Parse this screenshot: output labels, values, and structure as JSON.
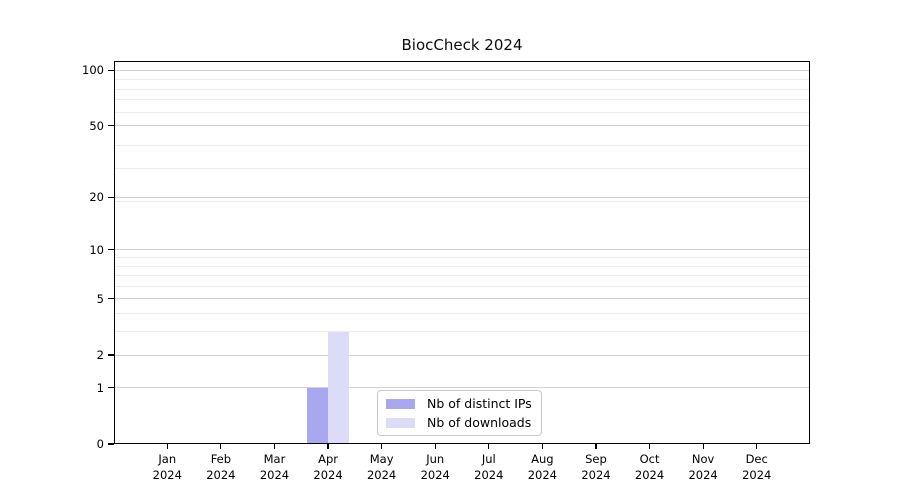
{
  "chart_data": {
    "type": "bar",
    "title": "BiocCheck 2024",
    "categories": [
      "Jan",
      "Feb",
      "Mar",
      "Apr",
      "May",
      "Jun",
      "Jul",
      "Aug",
      "Sep",
      "Oct",
      "Nov",
      "Dec"
    ],
    "year_label": "2024",
    "series": [
      {
        "name": "Nb of distinct IPs",
        "color": "#a8a8f0",
        "values": [
          0,
          0,
          0,
          1,
          0,
          0,
          0,
          0,
          0,
          0,
          0,
          0
        ]
      },
      {
        "name": "Nb of downloads",
        "color": "#dcdcf8",
        "values": [
          0,
          0,
          0,
          3,
          0,
          0,
          0,
          0,
          0,
          0,
          0,
          0
        ]
      }
    ],
    "yticks": [
      0,
      1,
      2,
      5,
      10,
      20,
      50,
      100
    ],
    "ytick_labels": [
      "0",
      "1",
      "2",
      "5",
      "10",
      "20",
      "50",
      "100"
    ],
    "minor_gridlines": [
      3,
      4,
      6,
      7,
      8,
      9,
      19,
      29,
      39,
      59,
      69,
      79,
      89
    ],
    "yscale": "log10(1+value)",
    "ylim": [
      0,
      112
    ],
    "grid": true,
    "legend_position": "inside-bottom-center",
    "colors": {
      "background": "#ffffff",
      "major_grid": "#d2d2d2",
      "minor_grid": "#ececec",
      "spine": "#000000",
      "text": "#000000",
      "legend_border": "#c9c9c9"
    }
  }
}
